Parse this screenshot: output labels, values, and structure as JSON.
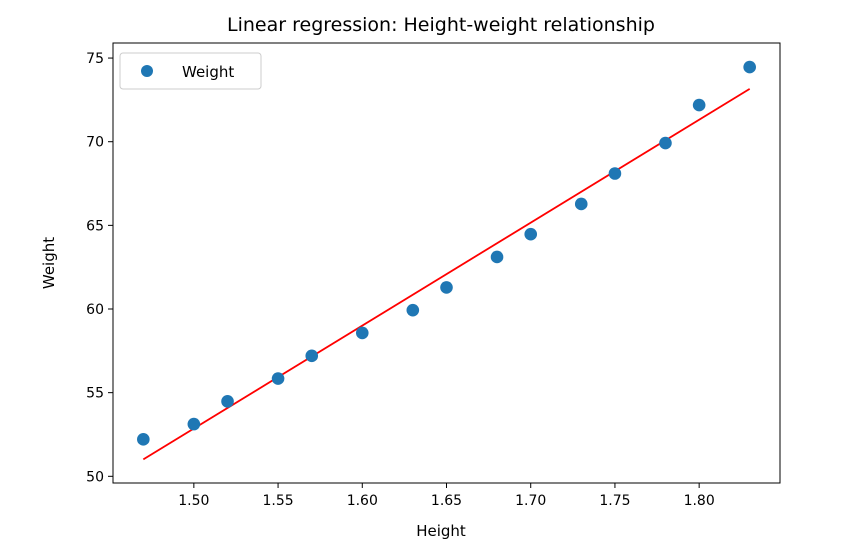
{
  "chart_data": {
    "type": "scatter",
    "title": "Linear regression: Height-weight relationship",
    "xlabel": "Height",
    "ylabel": "Weight",
    "xlim": [
      1.452,
      1.848
    ],
    "ylim": [
      49.6,
      75.9
    ],
    "grid": false,
    "legend_placement": "top-left",
    "x_ticks": [
      1.5,
      1.55,
      1.6,
      1.65,
      1.7,
      1.75,
      1.8
    ],
    "x_tick_labels": [
      "1.50",
      "1.55",
      "1.60",
      "1.65",
      "1.70",
      "1.75",
      "1.80"
    ],
    "y_ticks": [
      50,
      55,
      60,
      65,
      70,
      75
    ],
    "y_tick_labels": [
      "50",
      "55",
      "60",
      "65",
      "70",
      "75"
    ],
    "series": [
      {
        "name": "Weight",
        "kind": "scatter",
        "color": "#1f77b4",
        "x": [
          1.47,
          1.5,
          1.52,
          1.55,
          1.57,
          1.6,
          1.63,
          1.65,
          1.68,
          1.7,
          1.73,
          1.75,
          1.78,
          1.8,
          1.83
        ],
        "y": [
          52.21,
          53.12,
          54.48,
          55.84,
          57.2,
          58.57,
          59.93,
          61.29,
          63.11,
          64.47,
          66.28,
          68.1,
          69.92,
          72.19,
          74.46
        ]
      },
      {
        "kind": "line",
        "color": "#ff0000",
        "x": [
          1.47,
          1.83
        ],
        "y": [
          51.01,
          73.16
        ]
      }
    ]
  }
}
